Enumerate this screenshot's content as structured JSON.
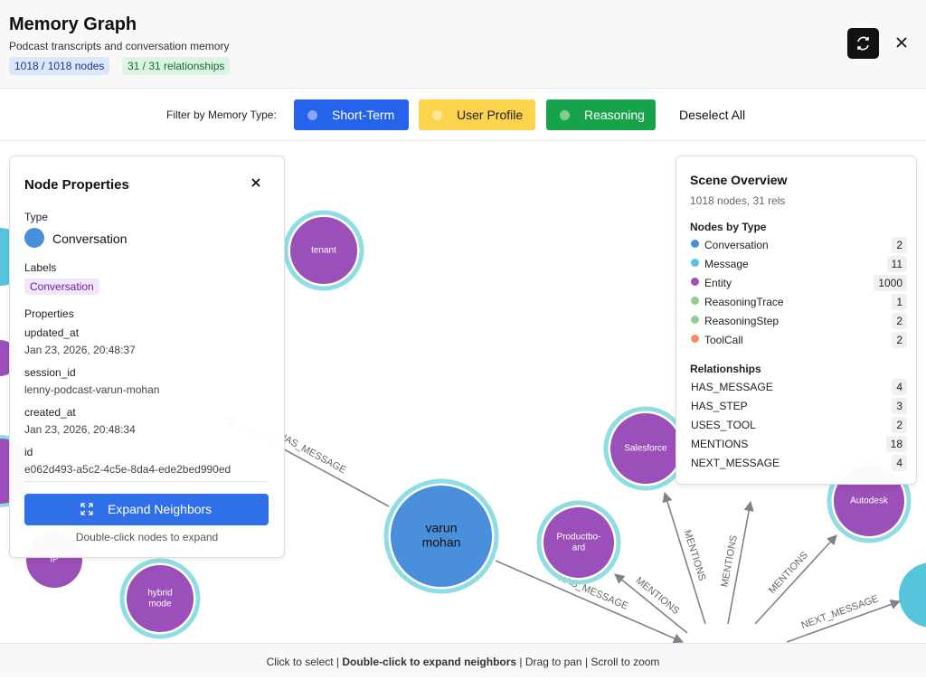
{
  "header": {
    "title": "Memory Graph",
    "subtitle": "Podcast transcripts and conversation memory",
    "node_badge": "1018 / 1018 nodes",
    "rel_badge": "31 / 31 relationships"
  },
  "filter": {
    "label": "Filter by Memory Type:",
    "buttons": [
      {
        "label": "Short-Term",
        "color": "#2563eb"
      },
      {
        "label": "User Profile",
        "color": "#fcd34d"
      },
      {
        "label": "Reasoning",
        "color": "#16a34a"
      }
    ],
    "deselect": "Deselect All"
  },
  "node_properties": {
    "title": "Node Properties",
    "type_label": "Type",
    "type": "Conversation",
    "labels_label": "Labels",
    "labels": [
      "Conversation"
    ],
    "properties_label": "Properties",
    "properties": [
      {
        "key": "updated_at",
        "value": "Jan 23, 2026, 20:48:37"
      },
      {
        "key": "session_id",
        "value": "lenny-podcast-varun-mohan"
      },
      {
        "key": "created_at",
        "value": "Jan 23, 2026, 20:48:34"
      },
      {
        "key": "id",
        "value": "e062d493-a5c2-4c5e-8da4-ede2bed990ed"
      }
    ],
    "expand": "Expand Neighbors",
    "hint": "Double-click nodes to expand"
  },
  "scene_overview": {
    "title": "Scene Overview",
    "summary": "1018 nodes, 31 rels",
    "nodes_heading": "Nodes by Type",
    "node_types": [
      {
        "name": "Conversation",
        "count": 2,
        "color": "#4a8fdb"
      },
      {
        "name": "Message",
        "count": 11,
        "color": "#56c5dc"
      },
      {
        "name": "Entity",
        "count": 1000,
        "color": "#9b4fb8"
      },
      {
        "name": "ReasoningTrace",
        "count": 1,
        "color": "#8fcf8f"
      },
      {
        "name": "ReasoningStep",
        "count": 2,
        "color": "#8fcf8f"
      },
      {
        "name": "ToolCall",
        "count": 2,
        "color": "#f0905a"
      }
    ],
    "relationships_heading": "Relationships",
    "relationships": [
      {
        "name": "HAS_MESSAGE",
        "count": 4
      },
      {
        "name": "HAS_STEP",
        "count": 3
      },
      {
        "name": "USES_TOOL",
        "count": 2
      },
      {
        "name": "MENTIONS",
        "count": 18
      },
      {
        "name": "NEXT_MESSAGE",
        "count": 4
      }
    ]
  },
  "graph": {
    "nodes": [
      {
        "lines": [
          "tenant"
        ]
      },
      {
        "lines": [
          "varun",
          "mohan"
        ]
      },
      {
        "lines": [
          "hybrid",
          "mode"
        ]
      },
      {
        "lines": [
          "Productbo-",
          "ard"
        ]
      },
      {
        "lines": [
          "Salesforce"
        ]
      },
      {
        "lines": [
          "Autodesk"
        ]
      },
      {
        "lines": [
          "IP"
        ]
      }
    ],
    "edges": [
      {
        "label": "HAS_MESSAGE"
      },
      {
        "label": "HAS_MESSAGE"
      },
      {
        "label": "MENTIONS"
      },
      {
        "label": "MENTIONS"
      },
      {
        "label": "MENTIONS"
      },
      {
        "label": "MENTIONS"
      },
      {
        "label": "NEXT_MESSAGE"
      }
    ]
  },
  "footer": {
    "parts": [
      "Click to select",
      "Double-click to expand neighbors",
      "Drag to pan",
      "Scroll to zoom"
    ]
  }
}
